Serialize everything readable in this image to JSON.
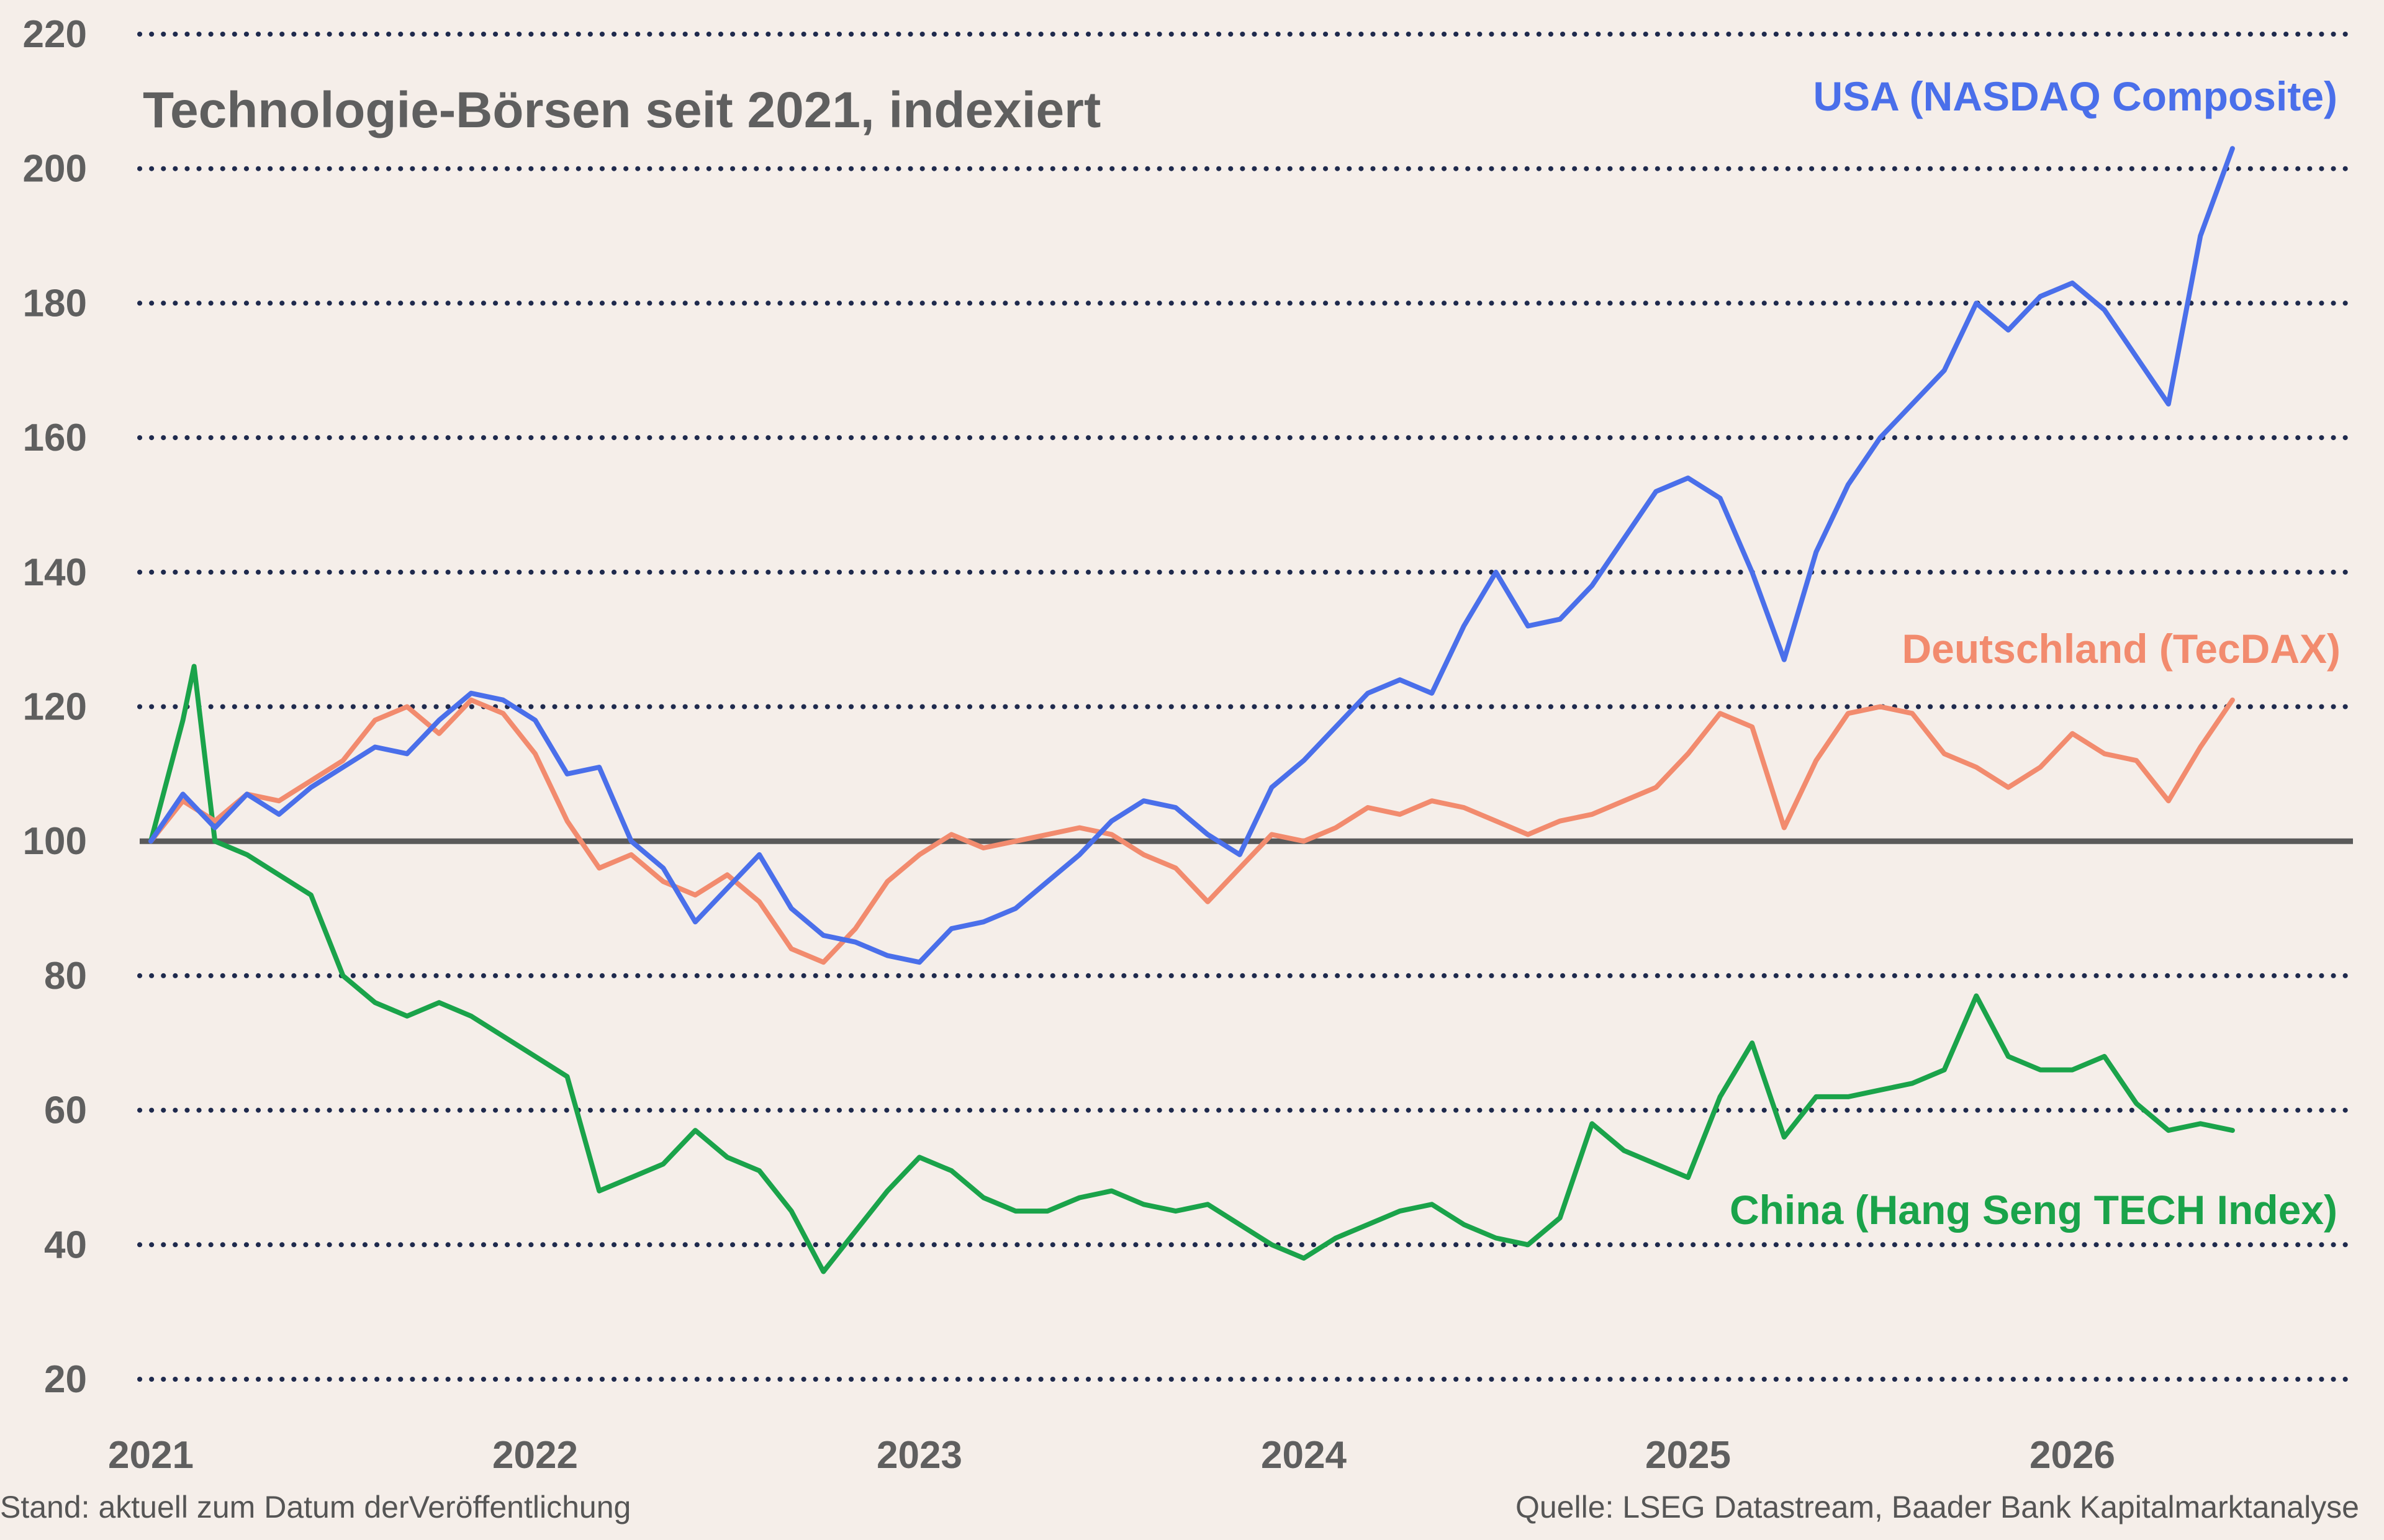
{
  "chart_data": {
    "type": "line",
    "title": "Technologie-Börsen seit 2021, indexiert",
    "xlabel": "",
    "ylabel": "",
    "ylim": [
      20,
      220
    ],
    "yticks": [
      20,
      40,
      60,
      80,
      100,
      120,
      140,
      160,
      180,
      200,
      220
    ],
    "xlim": [
      "2021-01",
      "2026-09"
    ],
    "xticks": [
      "2021",
      "2022",
      "2023",
      "2024",
      "2025",
      "2026"
    ],
    "baseline": 100,
    "grid": true,
    "series": [
      {
        "name": "USA (NASDAQ Composite)",
        "color": "#4a6fea",
        "points": [
          [
            "2021-01",
            100
          ],
          [
            "2021-02",
            107
          ],
          [
            "2021-03",
            102
          ],
          [
            "2021-04",
            107
          ],
          [
            "2021-05",
            104
          ],
          [
            "2021-06",
            108
          ],
          [
            "2021-07",
            111
          ],
          [
            "2021-08",
            114
          ],
          [
            "2021-09",
            113
          ],
          [
            "2021-10",
            118
          ],
          [
            "2021-11",
            122
          ],
          [
            "2021-12",
            121
          ],
          [
            "2022-01",
            118
          ],
          [
            "2022-02",
            110
          ],
          [
            "2022-03",
            111
          ],
          [
            "2022-04",
            100
          ],
          [
            "2022-05",
            96
          ],
          [
            "2022-06",
            88
          ],
          [
            "2022-07",
            93
          ],
          [
            "2022-08",
            98
          ],
          [
            "2022-09",
            90
          ],
          [
            "2022-10",
            86
          ],
          [
            "2022-11",
            85
          ],
          [
            "2022-12",
            83
          ],
          [
            "2023-01",
            82
          ],
          [
            "2023-02",
            87
          ],
          [
            "2023-03",
            88
          ],
          [
            "2023-04",
            90
          ],
          [
            "2023-05",
            94
          ],
          [
            "2023-06",
            98
          ],
          [
            "2023-07",
            103
          ],
          [
            "2023-08",
            106
          ],
          [
            "2023-09",
            105
          ],
          [
            "2023-10",
            101
          ],
          [
            "2023-11",
            98
          ],
          [
            "2023-12",
            108
          ],
          [
            "2024-01",
            112
          ],
          [
            "2024-02",
            117
          ],
          [
            "2024-03",
            122
          ],
          [
            "2024-04",
            124
          ],
          [
            "2024-05",
            122
          ],
          [
            "2024-06",
            132
          ],
          [
            "2024-07",
            140
          ],
          [
            "2024-08",
            132
          ],
          [
            "2024-09",
            133
          ],
          [
            "2024-10",
            138
          ],
          [
            "2024-11",
            145
          ],
          [
            "2024-12",
            152
          ],
          [
            "2025-01",
            154
          ],
          [
            "2025-02",
            151
          ],
          [
            "2025-03",
            140
          ],
          [
            "2025-04",
            127
          ],
          [
            "2025-05",
            143
          ],
          [
            "2025-06",
            153
          ],
          [
            "2025-07",
            160
          ],
          [
            "2025-08",
            165
          ],
          [
            "2025-09",
            170
          ],
          [
            "2025-10",
            180
          ],
          [
            "2025-11",
            176
          ],
          [
            "2025-12",
            181
          ],
          [
            "2026-01",
            183
          ],
          [
            "2026-02",
            179
          ],
          [
            "2026-03",
            172
          ],
          [
            "2026-04",
            165
          ],
          [
            "2026-05",
            190
          ],
          [
            "2026-06",
            203
          ]
        ]
      },
      {
        "name": "Deutschland (TecDAX)",
        "color": "#f28b6e",
        "points": [
          [
            "2021-01",
            100
          ],
          [
            "2021-02",
            106
          ],
          [
            "2021-03",
            103
          ],
          [
            "2021-04",
            107
          ],
          [
            "2021-05",
            106
          ],
          [
            "2021-06",
            109
          ],
          [
            "2021-07",
            112
          ],
          [
            "2021-08",
            118
          ],
          [
            "2021-09",
            120
          ],
          [
            "2021-10",
            116
          ],
          [
            "2021-11",
            121
          ],
          [
            "2021-12",
            119
          ],
          [
            "2022-01",
            113
          ],
          [
            "2022-02",
            103
          ],
          [
            "2022-03",
            96
          ],
          [
            "2022-04",
            98
          ],
          [
            "2022-05",
            94
          ],
          [
            "2022-06",
            92
          ],
          [
            "2022-07",
            95
          ],
          [
            "2022-08",
            91
          ],
          [
            "2022-09",
            84
          ],
          [
            "2022-10",
            82
          ],
          [
            "2022-11",
            87
          ],
          [
            "2022-12",
            94
          ],
          [
            "2023-01",
            98
          ],
          [
            "2023-02",
            101
          ],
          [
            "2023-03",
            99
          ],
          [
            "2023-04",
            100
          ],
          [
            "2023-05",
            101
          ],
          [
            "2023-06",
            102
          ],
          [
            "2023-07",
            101
          ],
          [
            "2023-08",
            98
          ],
          [
            "2023-09",
            96
          ],
          [
            "2023-10",
            91
          ],
          [
            "2023-11",
            96
          ],
          [
            "2023-12",
            101
          ],
          [
            "2024-01",
            100
          ],
          [
            "2024-02",
            102
          ],
          [
            "2024-03",
            105
          ],
          [
            "2024-04",
            104
          ],
          [
            "2024-05",
            106
          ],
          [
            "2024-06",
            105
          ],
          [
            "2024-07",
            103
          ],
          [
            "2024-08",
            101
          ],
          [
            "2024-09",
            103
          ],
          [
            "2024-10",
            104
          ],
          [
            "2024-11",
            106
          ],
          [
            "2024-12",
            108
          ],
          [
            "2025-01",
            113
          ],
          [
            "2025-02",
            119
          ],
          [
            "2025-03",
            117
          ],
          [
            "2025-04",
            102
          ],
          [
            "2025-05",
            112
          ],
          [
            "2025-06",
            119
          ],
          [
            "2025-07",
            120
          ],
          [
            "2025-08",
            119
          ],
          [
            "2025-09",
            113
          ],
          [
            "2025-10",
            111
          ],
          [
            "2025-11",
            108
          ],
          [
            "2025-12",
            111
          ],
          [
            "2026-01",
            116
          ],
          [
            "2026-02",
            113
          ],
          [
            "2026-03",
            112
          ],
          [
            "2026-04",
            106
          ],
          [
            "2026-05",
            114
          ],
          [
            "2026-06",
            121
          ]
        ]
      },
      {
        "name": "China (Hang Seng TECH Index)",
        "color": "#1aa34a",
        "points": [
          [
            "2021-01",
            100
          ],
          [
            "2021-02",
            118
          ],
          [
            "2021-02",
            126
          ],
          [
            "2021-03",
            100
          ],
          [
            "2021-04",
            98
          ],
          [
            "2021-05",
            95
          ],
          [
            "2021-06",
            92
          ],
          [
            "2021-07",
            80
          ],
          [
            "2021-08",
            76
          ],
          [
            "2021-09",
            74
          ],
          [
            "2021-10",
            76
          ],
          [
            "2021-11",
            74
          ],
          [
            "2022-01",
            68
          ],
          [
            "2022-02",
            65
          ],
          [
            "2022-03",
            48
          ],
          [
            "2022-04",
            50
          ],
          [
            "2022-05",
            52
          ],
          [
            "2022-06",
            57
          ],
          [
            "2022-07",
            53
          ],
          [
            "2022-08",
            51
          ],
          [
            "2022-09",
            45
          ],
          [
            "2022-10",
            36
          ],
          [
            "2022-11",
            42
          ],
          [
            "2022-12",
            48
          ],
          [
            "2023-01",
            53
          ],
          [
            "2023-02",
            51
          ],
          [
            "2023-03",
            47
          ],
          [
            "2023-04",
            45
          ],
          [
            "2023-05",
            45
          ],
          [
            "2023-06",
            47
          ],
          [
            "2023-07",
            48
          ],
          [
            "2023-08",
            46
          ],
          [
            "2023-09",
            45
          ],
          [
            "2023-10",
            46
          ],
          [
            "2023-11",
            43
          ],
          [
            "2023-12",
            40
          ],
          [
            "2024-01",
            38
          ],
          [
            "2024-02",
            41
          ],
          [
            "2024-03",
            43
          ],
          [
            "2024-04",
            45
          ],
          [
            "2024-05",
            46
          ],
          [
            "2024-06",
            43
          ],
          [
            "2024-07",
            41
          ],
          [
            "2024-08",
            40
          ],
          [
            "2024-09",
            44
          ],
          [
            "2024-10",
            58
          ],
          [
            "2024-11",
            54
          ],
          [
            "2024-12",
            52
          ],
          [
            "2025-01",
            50
          ],
          [
            "2025-02",
            62
          ],
          [
            "2025-03",
            70
          ],
          [
            "2025-04",
            56
          ],
          [
            "2025-05",
            62
          ],
          [
            "2025-06",
            62
          ],
          [
            "2025-07",
            63
          ],
          [
            "2025-08",
            64
          ],
          [
            "2025-09",
            66
          ],
          [
            "2025-10",
            77
          ],
          [
            "2025-11",
            68
          ],
          [
            "2025-12",
            66
          ],
          [
            "2026-01",
            66
          ],
          [
            "2026-02",
            68
          ],
          [
            "2026-03",
            61
          ],
          [
            "2026-04",
            57
          ],
          [
            "2026-05",
            58
          ],
          [
            "2026-06",
            57
          ]
        ]
      }
    ],
    "labels": {
      "usa": "USA (NASDAQ Composite)",
      "de": "Deutschland (TecDAX)",
      "china": "China (Hang Seng TECH Index)"
    },
    "footer_left": "Stand: aktuell zum Datum derVeröffentlichung",
    "footer_right": "Quelle: LSEG Datastream, Baader Bank Kapitalmarktanalyse"
  }
}
